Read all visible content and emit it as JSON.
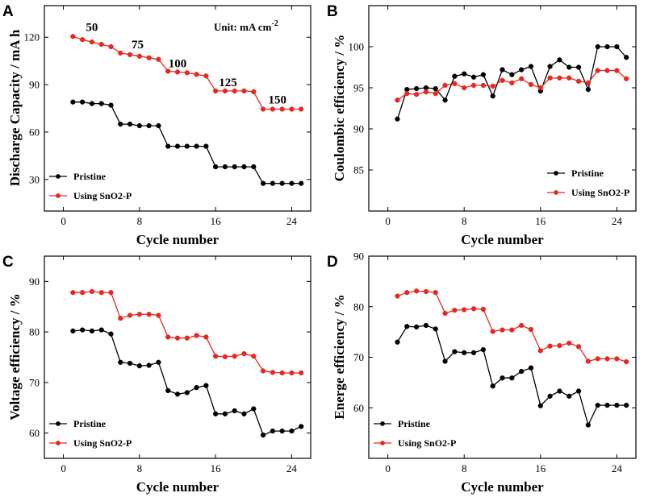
{
  "chart_data": [
    {
      "panel": "A",
      "type": "line",
      "xlabel": "Cycle number",
      "ylabel": "Discharge Capacity / mA h",
      "xlim": [
        -2,
        26
      ],
      "ylim": [
        10,
        140
      ],
      "xticks": [
        0,
        8,
        16,
        24
      ],
      "yticks": [
        30,
        60,
        90,
        120
      ],
      "unit_note": "Unit: mA cm",
      "unit_note_sup": "-2",
      "annotations": [
        {
          "text": "50",
          "x": 3,
          "y": 124
        },
        {
          "text": "75",
          "x": 7.8,
          "y": 113
        },
        {
          "text": "100",
          "x": 12,
          "y": 101
        },
        {
          "text": "125",
          "x": 17.3,
          "y": 89
        },
        {
          "text": "150",
          "x": 22.5,
          "y": 78
        }
      ],
      "legend": "bottom-left",
      "x": [
        1,
        2,
        3,
        4,
        5,
        6,
        7,
        8,
        9,
        10,
        11,
        12,
        13,
        14,
        15,
        16,
        17,
        18,
        19,
        20,
        21,
        22,
        23,
        24,
        25
      ],
      "series": [
        {
          "name": "Pristine",
          "color": "#000000",
          "values": [
            79,
            79,
            78,
            78,
            77,
            65,
            65,
            64,
            64,
            64,
            51,
            51,
            51,
            51,
            51,
            38,
            38,
            38,
            38,
            38,
            27.5,
            27.5,
            27.5,
            27.5,
            27.5
          ]
        },
        {
          "name": "Using SnO2-P",
          "color": "#e8281f",
          "values": [
            120.5,
            118.5,
            117,
            115.5,
            114,
            110,
            109,
            108,
            107,
            106,
            98.5,
            98,
            97.5,
            96.5,
            95.5,
            86,
            86,
            86,
            86,
            85.5,
            74.5,
            74.5,
            74.5,
            74.5,
            74.5
          ]
        }
      ]
    },
    {
      "panel": "B",
      "type": "line",
      "xlabel": "Cycle number",
      "ylabel": "Coulombic efficiency / %",
      "xlim": [
        -2,
        26
      ],
      "ylim": [
        80,
        105
      ],
      "xticks": [
        0,
        8,
        16,
        24
      ],
      "yticks": [
        85,
        90,
        95,
        100
      ],
      "legend": "bottom-right",
      "x": [
        1,
        2,
        3,
        4,
        5,
        6,
        7,
        8,
        9,
        10,
        11,
        12,
        13,
        14,
        15,
        16,
        17,
        18,
        19,
        20,
        21,
        22,
        23,
        24,
        25
      ],
      "series": [
        {
          "name": "Pristine",
          "color": "#000000",
          "values": [
            91.2,
            94.8,
            94.9,
            95,
            94.9,
            93.5,
            96.4,
            96.7,
            96.3,
            96.6,
            94,
            97.2,
            96.6,
            97.2,
            97.6,
            94.6,
            97.6,
            98.4,
            97.5,
            97.5,
            94.8,
            100,
            100,
            100,
            98.7
          ]
        },
        {
          "name": "Using SnO2-P",
          "color": "#e8281f",
          "values": [
            93.5,
            94.3,
            94.2,
            94.5,
            94.3,
            95.3,
            95.5,
            95,
            95.3,
            95.3,
            95.2,
            95.9,
            95.6,
            96.1,
            95.4,
            95,
            96.2,
            96.2,
            96.2,
            95.8,
            95.6,
            97.1,
            97.1,
            97.1,
            96.1
          ]
        }
      ]
    },
    {
      "panel": "C",
      "type": "line",
      "xlabel": "Cycle number",
      "ylabel": "Voltage efficiency / %",
      "xlim": [
        -2,
        26
      ],
      "ylim": [
        55,
        95
      ],
      "xticks": [
        0,
        8,
        16,
        24
      ],
      "yticks": [
        60,
        70,
        80,
        90
      ],
      "legend": "bottom-left",
      "x": [
        1,
        2,
        3,
        4,
        5,
        6,
        7,
        8,
        9,
        10,
        11,
        12,
        13,
        14,
        15,
        16,
        17,
        18,
        19,
        20,
        21,
        22,
        23,
        24,
        25
      ],
      "series": [
        {
          "name": "Pristine",
          "color": "#000000",
          "values": [
            80.2,
            80.4,
            80.2,
            80.4,
            79.6,
            74,
            73.8,
            73.3,
            73.4,
            74,
            68.4,
            67.7,
            68,
            69,
            69.4,
            63.8,
            63.8,
            64.4,
            63.8,
            64.8,
            59.6,
            60.4,
            60.4,
            60.4,
            61.3
          ]
        },
        {
          "name": "Using SnO2-P",
          "color": "#e8281f",
          "values": [
            87.8,
            87.8,
            88,
            87.8,
            87.8,
            82.7,
            83.3,
            83.5,
            83.5,
            83.3,
            79,
            78.8,
            78.8,
            79.3,
            79,
            75.2,
            75.1,
            75.2,
            75.7,
            75.2,
            72.3,
            72,
            71.9,
            71.9,
            71.9
          ]
        }
      ]
    },
    {
      "panel": "D",
      "type": "line",
      "xlabel": "Cycle number",
      "ylabel": "Energe efficiency / %",
      "xlim": [
        -2,
        26
      ],
      "ylim": [
        50,
        90
      ],
      "xticks": [
        0,
        8,
        16,
        24
      ],
      "yticks": [
        60,
        70,
        80,
        90
      ],
      "legend": "bottom-left",
      "x": [
        1,
        2,
        3,
        4,
        5,
        6,
        7,
        8,
        9,
        10,
        11,
        12,
        13,
        14,
        15,
        16,
        17,
        18,
        19,
        20,
        21,
        22,
        23,
        24,
        25
      ],
      "series": [
        {
          "name": "Pristine",
          "color": "#000000",
          "values": [
            73,
            76.1,
            76,
            76.3,
            75.6,
            69.2,
            71.1,
            70.9,
            70.9,
            71.5,
            64.3,
            65.9,
            65.9,
            67.2,
            67.9,
            60.4,
            62.3,
            63.3,
            62.3,
            63.3,
            56.6,
            60.5,
            60.5,
            60.5,
            60.5
          ]
        },
        {
          "name": "Using SnO2-P",
          "color": "#e8281f",
          "values": [
            82.1,
            82.8,
            83.1,
            83,
            82.8,
            78.7,
            79.3,
            79.4,
            79.6,
            79.5,
            75.1,
            75.4,
            75.4,
            76.3,
            75.5,
            71.3,
            72.2,
            72.3,
            72.8,
            72.1,
            69.2,
            69.7,
            69.7,
            69.7,
            69.1
          ]
        }
      ]
    }
  ]
}
